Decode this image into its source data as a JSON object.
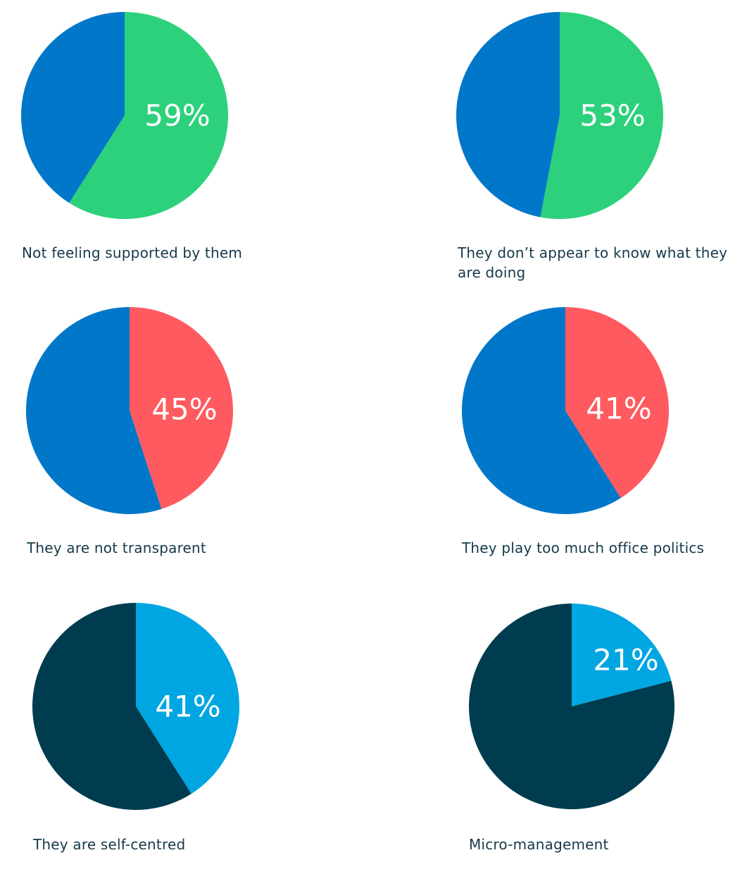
{
  "chart_data": [
    {
      "type": "pie",
      "caption": "Not feeling supported by them",
      "slices": [
        {
          "name": "",
          "value": 59,
          "label": "59%",
          "color": "#2dd17c"
        },
        {
          "name": "",
          "value": 41,
          "label": "",
          "color": "#0077c8"
        }
      ]
    },
    {
      "type": "pie",
      "caption": "They don’t appear to know what they are doing",
      "slices": [
        {
          "name": "",
          "value": 53,
          "label": "53%",
          "color": "#2dd17c"
        },
        {
          "name": "",
          "value": 47,
          "label": "",
          "color": "#0077c8"
        }
      ]
    },
    {
      "type": "pie",
      "caption": "They are not transparent",
      "slices": [
        {
          "name": "",
          "value": 45,
          "label": "45%",
          "color": "#ff5a5f"
        },
        {
          "name": "",
          "value": 55,
          "label": "",
          "color": "#0077c8"
        }
      ]
    },
    {
      "type": "pie",
      "caption": "They play too much office politics",
      "slices": [
        {
          "name": "",
          "value": 41,
          "label": "41%",
          "color": "#ff5a5f"
        },
        {
          "name": "",
          "value": 59,
          "label": "",
          "color": "#0077c8"
        }
      ]
    },
    {
      "type": "pie",
      "caption": "They are self-centred",
      "slices": [
        {
          "name": "",
          "value": 41,
          "label": "41%",
          "color": "#00a6e2"
        },
        {
          "name": "",
          "value": 59,
          "label": "",
          "color": "#003c4f"
        }
      ]
    },
    {
      "type": "pie",
      "caption": "Micro-management",
      "slices": [
        {
          "name": "",
          "value": 21,
          "label": "21%",
          "color": "#00a6e2"
        },
        {
          "name": "",
          "value": 79,
          "label": "",
          "color": "#003c4f"
        }
      ]
    }
  ]
}
